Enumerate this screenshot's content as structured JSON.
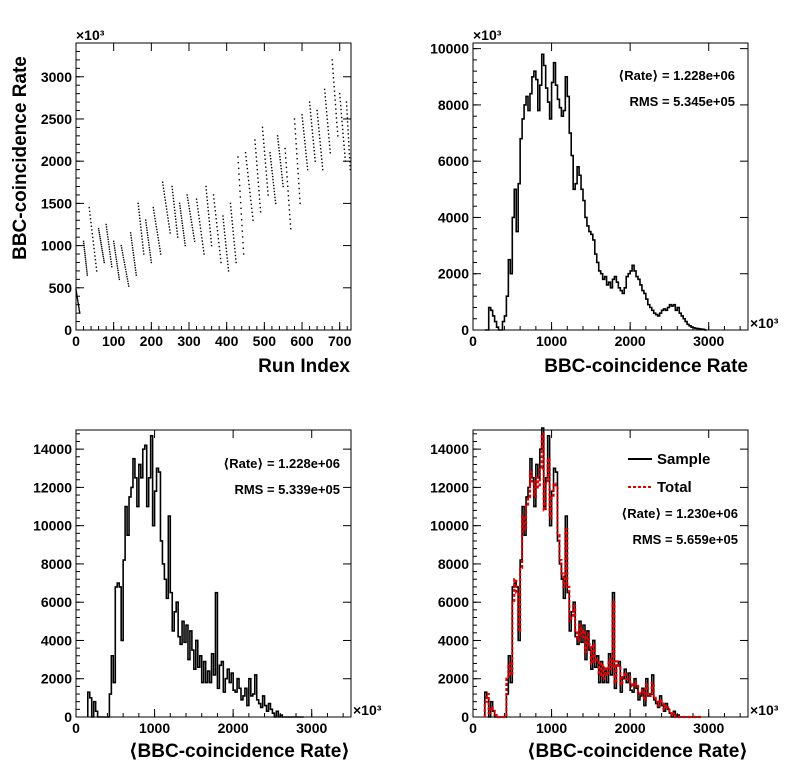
{
  "chart_data": [
    {
      "id": "scatter",
      "type": "scatter",
      "xlabel": "Run Index",
      "ylabel": "BBC-coincidence Rate",
      "multiplier": "×10³",
      "xlim": [
        0,
        730
      ],
      "ylim": [
        0,
        3400
      ],
      "xticks": [
        "0",
        "100",
        "200",
        "300",
        "400",
        "500",
        "600",
        "700"
      ],
      "yticks": [
        "0",
        "500",
        "1000",
        "1500",
        "2000",
        "2500",
        "3000"
      ],
      "yticks_values": [
        0,
        500,
        1000,
        1500,
        2000,
        2500,
        3000
      ],
      "xticks_values": [
        0,
        100,
        200,
        300,
        400,
        500,
        600,
        700
      ],
      "segments": [
        [
          0,
          480,
          10,
          200
        ],
        [
          20,
          1050,
          30,
          650
        ],
        [
          35,
          1450,
          55,
          700
        ],
        [
          60,
          1200,
          75,
          800
        ],
        [
          80,
          1250,
          95,
          750
        ],
        [
          100,
          1050,
          115,
          600
        ],
        [
          120,
          1000,
          140,
          520
        ],
        [
          145,
          1150,
          160,
          650
        ],
        [
          165,
          1500,
          180,
          900
        ],
        [
          185,
          1300,
          200,
          800
        ],
        [
          205,
          1450,
          225,
          900
        ],
        [
          230,
          1750,
          250,
          1150
        ],
        [
          255,
          1700,
          270,
          1100
        ],
        [
          275,
          1500,
          290,
          1000
        ],
        [
          295,
          1600,
          315,
          1050
        ],
        [
          320,
          1550,
          340,
          900
        ],
        [
          345,
          1700,
          360,
          1000
        ],
        [
          365,
          1600,
          385,
          800
        ],
        [
          390,
          1350,
          405,
          700
        ],
        [
          410,
          1500,
          425,
          800
        ],
        [
          430,
          2050,
          445,
          900
        ],
        [
          450,
          2100,
          470,
          1300
        ],
        [
          475,
          2250,
          490,
          1400
        ],
        [
          495,
          2400,
          510,
          1600
        ],
        [
          515,
          2100,
          530,
          1500
        ],
        [
          535,
          2300,
          550,
          1700
        ],
        [
          555,
          2150,
          570,
          1200
        ],
        [
          580,
          2500,
          595,
          1500
        ],
        [
          600,
          2550,
          615,
          1900
        ],
        [
          620,
          2700,
          635,
          2000
        ],
        [
          640,
          2600,
          655,
          1900
        ],
        [
          660,
          2850,
          675,
          2100
        ],
        [
          680,
          3200,
          695,
          2300
        ],
        [
          700,
          2800,
          715,
          2000
        ],
        [
          718,
          2700,
          728,
          1900
        ]
      ]
    },
    {
      "id": "hist1",
      "type": "histogram",
      "xlabel": "BBC-coincidence Rate",
      "multiplier": "×10³",
      "xlim": [
        0,
        3500
      ],
      "ylim": [
        0,
        10200
      ],
      "xticks": [
        "0",
        "1000",
        "2000",
        "3000"
      ],
      "xticks_values": [
        0,
        1000,
        2000,
        3000
      ],
      "yticks": [
        "0",
        "2000",
        "4000",
        "6000",
        "8000",
        "10000"
      ],
      "yticks_values": [
        0,
        2000,
        4000,
        6000,
        8000,
        10000
      ],
      "bin_start": 150,
      "bin_width": 25,
      "values": [
        0,
        0,
        800,
        700,
        500,
        300,
        100,
        0,
        0,
        300,
        500,
        1200,
        2500,
        2000,
        4000,
        5000,
        3500,
        5200,
        6800,
        7500,
        8000,
        8300,
        7800,
        8400,
        9000,
        9200,
        8900,
        7800,
        8700,
        9800,
        9400,
        8600,
        8100,
        7500,
        8800,
        9500,
        8700,
        8200,
        7900,
        7600,
        7800,
        9000,
        8300,
        7000,
        6200,
        5000,
        5200,
        5800,
        5500,
        5000,
        4600,
        4000,
        3700,
        3500,
        3400,
        3200,
        2700,
        2400,
        2100,
        2000,
        1800,
        1900,
        1600,
        1700,
        1500,
        1800,
        1900,
        1700,
        1500,
        1400,
        1300,
        1500,
        1900,
        2000,
        2100,
        2300,
        2100,
        1900,
        1800,
        1600,
        1400,
        1300,
        1100,
        900,
        800,
        700,
        600,
        550,
        500,
        600,
        700,
        750,
        700,
        800,
        900,
        850,
        900,
        700,
        800,
        600,
        500,
        400,
        300,
        200,
        150,
        100,
        80,
        60,
        50,
        40,
        30,
        20,
        0
      ],
      "stats": [
        "⟨Rate⟩ = 1.228e+06",
        "RMS = 5.345e+05"
      ]
    },
    {
      "id": "hist2",
      "type": "histogram",
      "xlabel": "⟨BBC-coincidence Rate⟩",
      "multiplier": "×10³",
      "xlim": [
        0,
        3500
      ],
      "ylim": [
        0,
        15000
      ],
      "xticks": [
        "0",
        "1000",
        "2000",
        "3000"
      ],
      "xticks_values": [
        0,
        1000,
        2000,
        3000
      ],
      "yticks": [
        "0",
        "2000",
        "4000",
        "6000",
        "8000",
        "10000",
        "12000",
        "14000"
      ],
      "yticks_values": [
        0,
        2000,
        4000,
        6000,
        8000,
        10000,
        12000,
        14000
      ],
      "bin_start": 150,
      "bin_width": 25,
      "values": [
        1300,
        1000,
        0,
        800,
        300,
        0,
        0,
        0,
        0,
        0,
        0,
        1200,
        3200,
        1800,
        6800,
        7000,
        6800,
        4000,
        8200,
        11000,
        9500,
        11500,
        12000,
        13500,
        12500,
        11000,
        13200,
        12500,
        14000,
        14200,
        11000,
        12500,
        14700,
        10000,
        11800,
        13000,
        12800,
        9200,
        8000,
        7200,
        6200,
        10500,
        6500,
        4500,
        5500,
        6000,
        4200,
        3800,
        5000,
        3900,
        4800,
        3000,
        4500,
        3500,
        2500,
        4000,
        2600,
        3200,
        1800,
        2900,
        1800,
        2400,
        1800,
        3300,
        2200,
        6500,
        1500,
        2700,
        2900,
        1300,
        2000,
        2500,
        1800,
        2300,
        1400,
        1300,
        2000,
        1500,
        900,
        1100,
        1500,
        600,
        2000,
        1100,
        1200,
        2200,
        900,
        700,
        500,
        1100,
        600,
        300,
        700,
        400,
        200,
        0,
        300,
        0,
        100,
        0,
        0,
        0,
        0,
        0,
        0,
        0,
        0,
        0,
        0,
        0
      ],
      "stats": [
        "⟨Rate⟩ = 1.228e+06",
        "RMS = 5.339e+05"
      ]
    },
    {
      "id": "hist3",
      "type": "histogram",
      "xlabel": "⟨BBC-coincidence Rate⟩",
      "multiplier": "×10³",
      "xlim": [
        0,
        3500
      ],
      "ylim": [
        0,
        15000
      ],
      "xticks": [
        "0",
        "1000",
        "2000",
        "3000"
      ],
      "xticks_values": [
        0,
        1000,
        2000,
        3000
      ],
      "yticks": [
        "0",
        "2000",
        "4000",
        "6000",
        "8000",
        "10000",
        "12000",
        "14000"
      ],
      "yticks_values": [
        0,
        2000,
        4000,
        6000,
        8000,
        10000,
        12000,
        14000
      ],
      "bin_start": 150,
      "bin_width": 25,
      "series": [
        {
          "name": "Sample",
          "color": "#000000",
          "dash": "",
          "values": [
            1300,
            1000,
            0,
            800,
            300,
            0,
            0,
            0,
            0,
            0,
            0,
            1200,
            3200,
            1800,
            6800,
            7000,
            6800,
            4000,
            8200,
            11000,
            9500,
            11500,
            12000,
            13500,
            12500,
            11000,
            13200,
            12500,
            14000,
            15100,
            11000,
            12500,
            14700,
            10000,
            11800,
            13000,
            12800,
            9200,
            8000,
            7200,
            6200,
            10500,
            6500,
            4500,
            5500,
            6000,
            4200,
            3800,
            5000,
            3900,
            4800,
            3000,
            4500,
            3500,
            2500,
            4000,
            2600,
            3200,
            1800,
            2900,
            1800,
            2400,
            1800,
            3300,
            2200,
            6500,
            1500,
            2700,
            2900,
            1300,
            2000,
            2500,
            1800,
            2300,
            1400,
            1300,
            2000,
            1500,
            900,
            1100,
            1500,
            600,
            2000,
            1100,
            1200,
            2200,
            900,
            700,
            500,
            1100,
            600,
            300,
            700,
            400,
            200,
            0,
            300,
            0,
            100,
            0,
            0,
            0,
            0,
            0,
            0,
            0,
            0,
            0,
            0,
            0
          ]
        },
        {
          "name": "Total",
          "color": "#e00000",
          "dash": "3,2",
          "values": [
            800,
            1200,
            200,
            500,
            400,
            100,
            0,
            0,
            0,
            0,
            0,
            2000,
            2800,
            2200,
            6000,
            7200,
            6500,
            4500,
            7800,
            10500,
            9800,
            11000,
            11500,
            12800,
            12200,
            11500,
            12500,
            12000,
            13000,
            14800,
            10800,
            12200,
            13500,
            10400,
            11500,
            12200,
            12000,
            9500,
            8200,
            7500,
            6800,
            9800,
            6800,
            5000,
            5300,
            5800,
            4500,
            4000,
            4800,
            4200,
            4500,
            3400,
            4300,
            3800,
            2800,
            3800,
            2900,
            3000,
            2200,
            2800,
            2000,
            2600,
            2200,
            3000,
            2500,
            6000,
            1800,
            2900,
            2600,
            1700,
            2200,
            2300,
            2000,
            2100,
            1700,
            1600,
            1800,
            1700,
            1200,
            1300,
            1400,
            900,
            1700,
            1200,
            1100,
            1800,
            1000,
            800,
            600,
            900,
            700,
            400,
            600,
            500,
            300,
            100,
            200,
            0,
            0,
            0,
            0,
            0,
            0,
            0,
            0,
            0,
            0,
            0,
            0,
            0
          ]
        }
      ],
      "stats": [
        "⟨Rate⟩ = 1.230e+06",
        "RMS = 5.659e+05"
      ],
      "legend": [
        "Sample",
        "Total"
      ]
    }
  ]
}
